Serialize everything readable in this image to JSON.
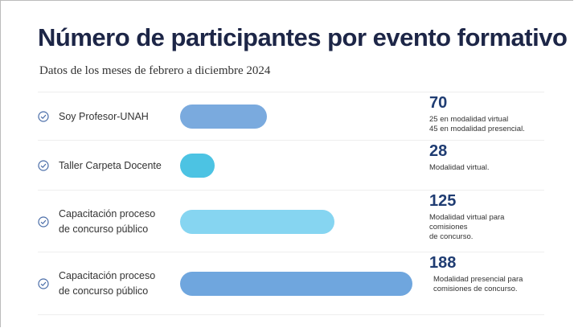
{
  "chart_data": {
    "type": "bar",
    "orientation": "horizontal",
    "title": "Número de participantes por evento formativo",
    "subtitle": "Datos de los meses de febrero a diciembre 2024",
    "categories": [
      [
        "Soy Profesor-UNAH"
      ],
      [
        "Taller Carpeta Docente"
      ],
      [
        "Capacitación proceso",
        "de concurso público"
      ],
      [
        "Capacitación proceso",
        "de concurso público"
      ]
    ],
    "values": [
      70,
      28,
      125,
      188
    ],
    "colors": [
      "#7aaade",
      "#4cc3e3",
      "#86d5f1",
      "#6fa6de"
    ],
    "notes": [
      [
        "25 en modalidad virtual",
        "45 en modalidad presencial."
      ],
      [
        "Modalidad virtual."
      ],
      [
        "Modalidad virtual para comisiones",
        "de concurso."
      ],
      [
        "Modalidad presencial para",
        "comisiones de concurso."
      ]
    ]
  }
}
